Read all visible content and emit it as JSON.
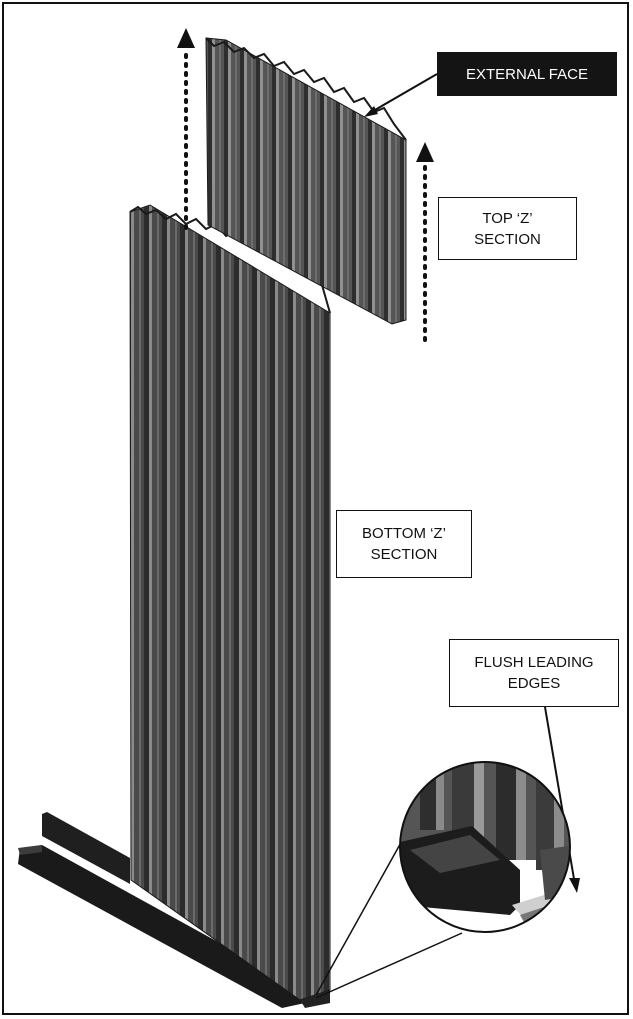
{
  "labels": {
    "external_face": "EXTERNAL FACE",
    "top_section": "TOP ‘Z’\nSECTION",
    "bottom_section": "BOTTOM ‘Z’\nSECTION",
    "flush_edges": "FLUSH LEADING\nEDGES"
  },
  "colors": {
    "panel_dark": "#3a3a3a",
    "panel_mid": "#5e5e5e",
    "panel_light": "#8a8a8a",
    "channel": "#1a1a1a",
    "line": "#111111"
  }
}
